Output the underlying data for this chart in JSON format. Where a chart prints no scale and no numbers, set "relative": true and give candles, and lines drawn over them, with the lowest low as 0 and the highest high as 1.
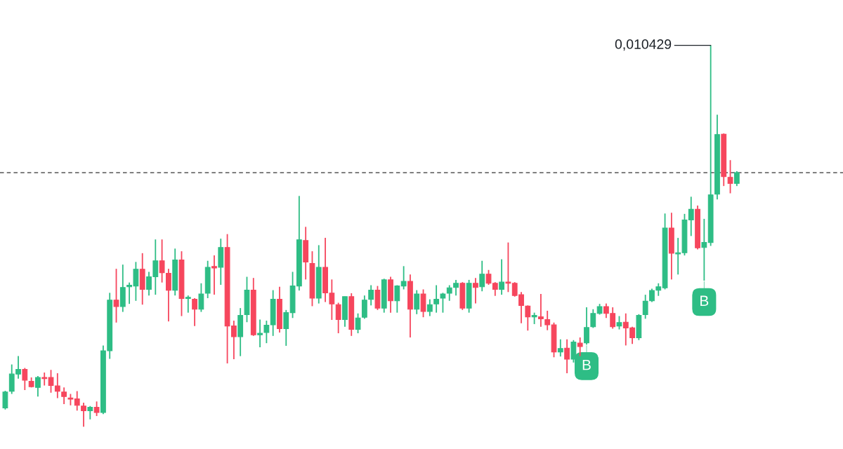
{
  "chart_data": {
    "type": "candlestick",
    "relative": true,
    "categories": [
      null,
      null,
      null,
      null,
      null,
      null,
      null,
      null,
      null,
      null,
      null,
      null,
      null,
      null,
      null,
      null,
      null,
      null,
      null,
      null,
      null,
      null,
      null,
      null,
      null,
      null,
      null,
      null,
      null,
      null,
      null,
      null,
      null,
      null,
      null,
      null,
      null,
      null,
      null,
      null,
      null,
      null,
      null,
      null,
      null,
      null,
      null,
      null,
      null,
      null,
      null,
      null,
      null,
      null,
      null,
      null,
      null,
      null,
      null,
      null,
      null,
      null,
      null,
      null,
      null,
      null,
      null,
      null,
      null,
      null,
      null,
      null,
      null,
      null,
      null,
      null,
      null,
      null,
      null,
      null,
      null,
      null,
      null,
      null,
      null,
      null,
      null,
      null,
      null,
      null,
      null,
      null,
      null,
      null,
      null,
      null,
      null,
      null,
      null,
      null,
      null,
      null,
      null,
      null,
      null,
      null,
      null,
      null,
      null,
      null,
      null,
      null,
      null
    ],
    "ohlc": [
      [
        0.049,
        0.094,
        0.045,
        0.091
      ],
      [
        0.093,
        0.163,
        0.086,
        0.138
      ],
      [
        0.138,
        0.185,
        0.126,
        0.15
      ],
      [
        0.15,
        0.154,
        0.096,
        0.122
      ],
      [
        0.119,
        0.129,
        0.103,
        0.105
      ],
      [
        0.103,
        0.133,
        0.079,
        0.129
      ],
      [
        0.129,
        0.142,
        0.108,
        0.126
      ],
      [
        0.129,
        0.149,
        0.089,
        0.108
      ],
      [
        0.107,
        0.14,
        0.075,
        0.093
      ],
      [
        0.091,
        0.103,
        0.059,
        0.079
      ],
      [
        0.075,
        0.086,
        0.056,
        0.072
      ],
      [
        0.073,
        0.093,
        0.042,
        0.056
      ],
      [
        0.054,
        0.063,
        0,
        0.042
      ],
      [
        0.042,
        0.054,
        0.019,
        0.051
      ],
      [
        0.051,
        0.066,
        0.028,
        0.037
      ],
      [
        0.037,
        0.213,
        0.033,
        0.199
      ],
      [
        0.199,
        0.351,
        0.178,
        0.332
      ],
      [
        0.332,
        0.414,
        0.273,
        0.315
      ],
      [
        0.315,
        0.425,
        0.301,
        0.365
      ],
      [
        0.367,
        0.378,
        0.322,
        0.371
      ],
      [
        0.369,
        0.432,
        0.33,
        0.413
      ],
      [
        0.413,
        0.455,
        0.32,
        0.36
      ],
      [
        0.36,
        0.406,
        0.344,
        0.393
      ],
      [
        0.393,
        0.491,
        0.346,
        0.435
      ],
      [
        0.435,
        0.491,
        0.378,
        0.404
      ],
      [
        0.402,
        0.414,
        0.276,
        0.358
      ],
      [
        0.358,
        0.467,
        0.344,
        0.437
      ],
      [
        0.437,
        0.46,
        0.29,
        0.336
      ],
      [
        0.336,
        0.344,
        0.299,
        0.339
      ],
      [
        0.334,
        0.337,
        0.264,
        0.308
      ],
      [
        0.308,
        0.376,
        0.301,
        0.348
      ],
      [
        0.35,
        0.435,
        0.337,
        0.418
      ],
      [
        0.42,
        0.449,
        0.346,
        0.416
      ],
      [
        0.418,
        0.493,
        0.372,
        0.47
      ],
      [
        0.47,
        0.505,
        0.166,
        0.264
      ],
      [
        0.264,
        0.278,
        0.177,
        0.236
      ],
      [
        0.236,
        0.311,
        0.185,
        0.292
      ],
      [
        0.294,
        0.393,
        0.274,
        0.358
      ],
      [
        0.358,
        0.39,
        0.238,
        0.241
      ],
      [
        0.241,
        0.281,
        0.208,
        0.245
      ],
      [
        0.247,
        0.278,
        0.219,
        0.266
      ],
      [
        0.267,
        0.358,
        0.238,
        0.334
      ],
      [
        0.334,
        0.367,
        0.247,
        0.257
      ],
      [
        0.257,
        0.306,
        0.212,
        0.299
      ],
      [
        0.299,
        0.406,
        0.285,
        0.369
      ],
      [
        0.369,
        0.605,
        0.357,
        0.49
      ],
      [
        0.488,
        0.524,
        0.386,
        0.432
      ],
      [
        0.428,
        0.46,
        0.316,
        0.337
      ],
      [
        0.337,
        0.476,
        0.323,
        0.418
      ],
      [
        0.418,
        0.495,
        0.327,
        0.351
      ],
      [
        0.35,
        0.386,
        0.28,
        0.322
      ],
      [
        0.32,
        0.325,
        0.245,
        0.281
      ],
      [
        0.281,
        0.341,
        0.262,
        0.341
      ],
      [
        0.341,
        0.35,
        0.238,
        0.255
      ],
      [
        0.255,
        0.297,
        0.245,
        0.285
      ],
      [
        0.287,
        0.344,
        0.283,
        0.332
      ],
      [
        0.334,
        0.371,
        0.318,
        0.358
      ],
      [
        0.358,
        0.369,
        0.306,
        0.311
      ],
      [
        0.311,
        0.388,
        0.299,
        0.385
      ],
      [
        0.385,
        0.393,
        0.299,
        0.33
      ],
      [
        0.33,
        0.371,
        0.299,
        0.369
      ],
      [
        0.369,
        0.421,
        0.36,
        0.381
      ],
      [
        0.381,
        0.399,
        0.234,
        0.308
      ],
      [
        0.308,
        0.358,
        0.295,
        0.348
      ],
      [
        0.348,
        0.36,
        0.287,
        0.302
      ],
      [
        0.302,
        0.334,
        0.29,
        0.32
      ],
      [
        0.322,
        0.371,
        0.299,
        0.334
      ],
      [
        0.337,
        0.351,
        0.299,
        0.348
      ],
      [
        0.35,
        0.371,
        0.33,
        0.364
      ],
      [
        0.365,
        0.385,
        0.344,
        0.376
      ],
      [
        0.376,
        0.379,
        0.306,
        0.311
      ],
      [
        0.311,
        0.385,
        0.299,
        0.376
      ],
      [
        0.376,
        0.39,
        0.323,
        0.365
      ],
      [
        0.367,
        0.435,
        0.355,
        0.4
      ],
      [
        0.4,
        0.411,
        0.372,
        0.376
      ],
      [
        0.376,
        0.379,
        0.343,
        0.36
      ],
      [
        0.36,
        0.439,
        0.346,
        0.379
      ],
      [
        0.379,
        0.483,
        0.353,
        0.376
      ],
      [
        0.376,
        0.379,
        0.341,
        0.344
      ],
      [
        0.346,
        0.353,
        0.271,
        0.318
      ],
      [
        0.316,
        0.318,
        0.252,
        0.288
      ],
      [
        0.288,
        0.299,
        0.269,
        0.292
      ],
      [
        0.288,
        0.348,
        0.262,
        0.283
      ],
      [
        0.281,
        0.304,
        0.253,
        0.267
      ],
      [
        0.267,
        0.273,
        0.182,
        0.196
      ],
      [
        0.196,
        0.229,
        0.184,
        0.205
      ],
      [
        0.206,
        0.229,
        0.14,
        0.177
      ],
      [
        0.177,
        0.227,
        0.168,
        0.222
      ],
      [
        0.219,
        0.234,
        0.185,
        0.21
      ],
      [
        0.22,
        0.313,
        0.215,
        0.26
      ],
      [
        0.262,
        0.308,
        0.259,
        0.297
      ],
      [
        0.297,
        0.322,
        0.294,
        0.315
      ],
      [
        0.315,
        0.323,
        0.285,
        0.297
      ],
      [
        0.297,
        0.313,
        0.257,
        0.262
      ],
      [
        0.264,
        0.29,
        0.255,
        0.273
      ],
      [
        0.274,
        0.297,
        0.213,
        0.259
      ],
      [
        0.259,
        0.262,
        0.217,
        0.233
      ],
      [
        0.233,
        0.295,
        0.227,
        0.292
      ],
      [
        0.294,
        0.346,
        0.283,
        0.329
      ],
      [
        0.33,
        0.362,
        0.327,
        0.357
      ],
      [
        0.358,
        0.376,
        0.343,
        0.367
      ],
      [
        0.364,
        0.559,
        0.36,
        0.521
      ],
      [
        0.521,
        0.561,
        0.386,
        0.455
      ],
      [
        0.453,
        0.495,
        0.399,
        0.456
      ],
      [
        0.456,
        0.558,
        0.449,
        0.542
      ],
      [
        0.542,
        0.603,
        0.5,
        0.57
      ],
      [
        0.57,
        0.58,
        0.465,
        0.469
      ],
      [
        0.47,
        0.545,
        0.383,
        0.483
      ],
      [
        0.483,
        1,
        0.474,
        0.608
      ],
      [
        0.61,
        0.818,
        0.596,
        0.766
      ],
      [
        0.767,
        0.769,
        0.631,
        0.656
      ],
      [
        0.654,
        0.699,
        0.612,
        0.638
      ],
      [
        0.638,
        0.67,
        0.631,
        0.666
      ]
    ],
    "colors": [
      "#2ebd85",
      "#2ebd85",
      "#2ebd85",
      "#f6465d",
      "#f6465d",
      "#2ebd85",
      "#f6465d",
      "#f6465d",
      "#f6465d",
      "#f6465d",
      "#f6465d",
      "#f6465d",
      "#f6465d",
      "#2ebd85",
      "#f6465d",
      "#2ebd85",
      "#2ebd85",
      "#f6465d",
      "#2ebd85",
      "#2ebd85",
      "#2ebd85",
      "#f6465d",
      "#2ebd85",
      "#2ebd85",
      "#f6465d",
      "#f6465d",
      "#2ebd85",
      "#f6465d",
      "#2ebd85",
      "#f6465d",
      "#2ebd85",
      "#2ebd85",
      "#f6465d",
      "#2ebd85",
      "#f6465d",
      "#f6465d",
      "#2ebd85",
      "#2ebd85",
      "#f6465d",
      "#2ebd85",
      "#2ebd85",
      "#2ebd85",
      "#f6465d",
      "#2ebd85",
      "#2ebd85",
      "#2ebd85",
      "#f6465d",
      "#f6465d",
      "#2ebd85",
      "#f6465d",
      "#f6465d",
      "#f6465d",
      "#2ebd85",
      "#f6465d",
      "#2ebd85",
      "#2ebd85",
      "#2ebd85",
      "#f6465d",
      "#2ebd85",
      "#f6465d",
      "#2ebd85",
      "#2ebd85",
      "#f6465d",
      "#2ebd85",
      "#f6465d",
      "#2ebd85",
      "#2ebd85",
      "#2ebd85",
      "#2ebd85",
      "#2ebd85",
      "#f6465d",
      "#2ebd85",
      "#f6465d",
      "#2ebd85",
      "#f6465d",
      "#f6465d",
      "#2ebd85",
      "#f6465d",
      "#f6465d",
      "#f6465d",
      "#f6465d",
      "#2ebd85",
      "#f6465d",
      "#f6465d",
      "#f6465d",
      "#2ebd85",
      "#f6465d",
      "#2ebd85",
      "#f6465d",
      "#2ebd85",
      "#2ebd85",
      "#2ebd85",
      "#f6465d",
      "#f6465d",
      "#2ebd85",
      "#f6465d",
      "#f6465d",
      "#2ebd85",
      "#2ebd85",
      "#2ebd85",
      "#2ebd85",
      "#2ebd85",
      "#f6465d",
      "#2ebd85",
      "#2ebd85",
      "#2ebd85",
      "#f6465d",
      "#2ebd85",
      "#2ebd85",
      "#2ebd85",
      "#f6465d",
      "#f6465d",
      "#2ebd85"
    ],
    "ref_lines": [
      {
        "axis": "y",
        "value": 0.666,
        "color": "#333333",
        "line_style": "dashed"
      }
    ],
    "annotations": [
      "0,010429",
      {
        "text": "B",
        "y": 0.215
      },
      {
        "text": "B",
        "y": 0.383
      }
    ]
  }
}
